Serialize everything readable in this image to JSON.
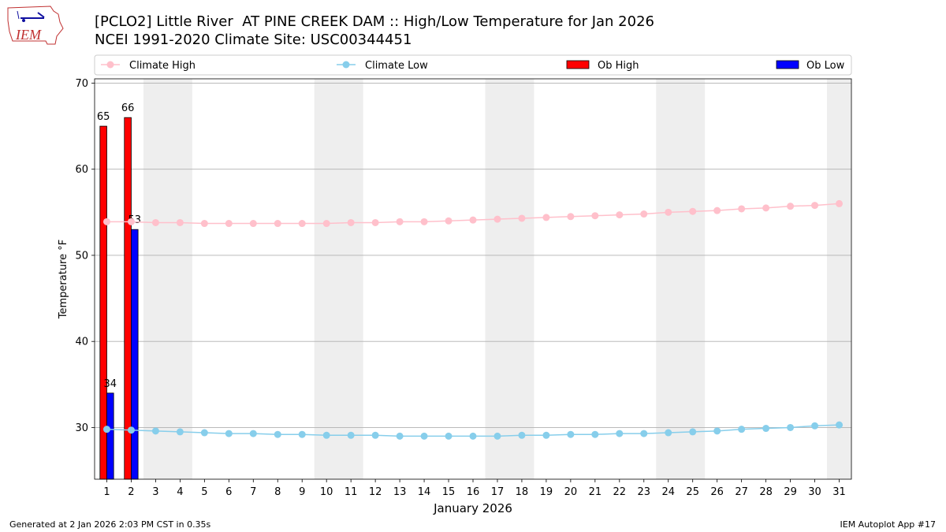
{
  "header": {
    "title_line1": "[PCLO2] Little River  AT PINE CREEK DAM :: High/Low Temperature for Jan 2026",
    "title_line2": "NCEI 1991-2020 Climate Site: USC00344451"
  },
  "logo": {
    "text": "IEM"
  },
  "footer": {
    "left": "Generated at 2 Jan 2026 2:03 PM CST in 0.35s",
    "right": "IEM Autoplot App #17"
  },
  "colors": {
    "climate_high": "#ffc0cb",
    "climate_low": "#87ceeb",
    "ob_high": "#ff0000",
    "ob_low": "#0000ff",
    "weekend_shade": "#eeeeee",
    "grid": "#b0b0b0"
  },
  "chart_data": {
    "type": "bar",
    "title": "[PCLO2] Little River  AT PINE CREEK DAM :: High/Low Temperature for Jan 2026",
    "subtitle": "NCEI 1991-2020 Climate Site: USC00344451",
    "xlabel": "January 2026",
    "ylabel": "Temperature °F",
    "ylim": [
      24,
      70.5
    ],
    "xlim": [
      0.5,
      31.5
    ],
    "yticks": [
      30,
      40,
      50,
      60,
      70
    ],
    "xticks": [
      1,
      2,
      3,
      4,
      5,
      6,
      7,
      8,
      9,
      10,
      11,
      12,
      13,
      14,
      15,
      16,
      17,
      18,
      19,
      20,
      21,
      22,
      23,
      24,
      25,
      26,
      27,
      28,
      29,
      30,
      31
    ],
    "grid": "y",
    "legend_position": "top",
    "weekend_shading": [
      [
        3,
        4
      ],
      [
        10,
        11
      ],
      [
        17,
        18
      ],
      [
        24,
        25
      ],
      [
        31,
        31
      ]
    ],
    "legend": [
      "Climate High",
      "Climate Low",
      "Ob High",
      "Ob Low"
    ],
    "lines": [
      {
        "name": "Climate High",
        "x": [
          1,
          2,
          3,
          4,
          5,
          6,
          7,
          8,
          9,
          10,
          11,
          12,
          13,
          14,
          15,
          16,
          17,
          18,
          19,
          20,
          21,
          22,
          23,
          24,
          25,
          26,
          27,
          28,
          29,
          30,
          31
        ],
        "values": [
          53.9,
          53.9,
          53.8,
          53.8,
          53.7,
          53.7,
          53.7,
          53.7,
          53.7,
          53.7,
          53.8,
          53.8,
          53.9,
          53.9,
          54.0,
          54.1,
          54.2,
          54.3,
          54.4,
          54.5,
          54.6,
          54.7,
          54.8,
          55.0,
          55.1,
          55.2,
          55.4,
          55.5,
          55.7,
          55.8,
          56.0
        ]
      },
      {
        "name": "Climate Low",
        "x": [
          1,
          2,
          3,
          4,
          5,
          6,
          7,
          8,
          9,
          10,
          11,
          12,
          13,
          14,
          15,
          16,
          17,
          18,
          19,
          20,
          21,
          22,
          23,
          24,
          25,
          26,
          27,
          28,
          29,
          30,
          31
        ],
        "values": [
          29.8,
          29.7,
          29.6,
          29.5,
          29.4,
          29.3,
          29.3,
          29.2,
          29.2,
          29.1,
          29.1,
          29.1,
          29.0,
          29.0,
          29.0,
          29.0,
          29.0,
          29.1,
          29.1,
          29.2,
          29.2,
          29.3,
          29.3,
          29.4,
          29.5,
          29.6,
          29.8,
          29.9,
          30.0,
          30.2,
          30.3
        ]
      }
    ],
    "bars": [
      {
        "name": "Ob High",
        "x": [
          1,
          2
        ],
        "values": [
          65,
          66
        ],
        "labels": [
          "65",
          "66"
        ]
      },
      {
        "name": "Ob Low",
        "x": [
          1,
          2
        ],
        "values": [
          34,
          53
        ],
        "labels": [
          "34",
          "53"
        ]
      }
    ]
  }
}
